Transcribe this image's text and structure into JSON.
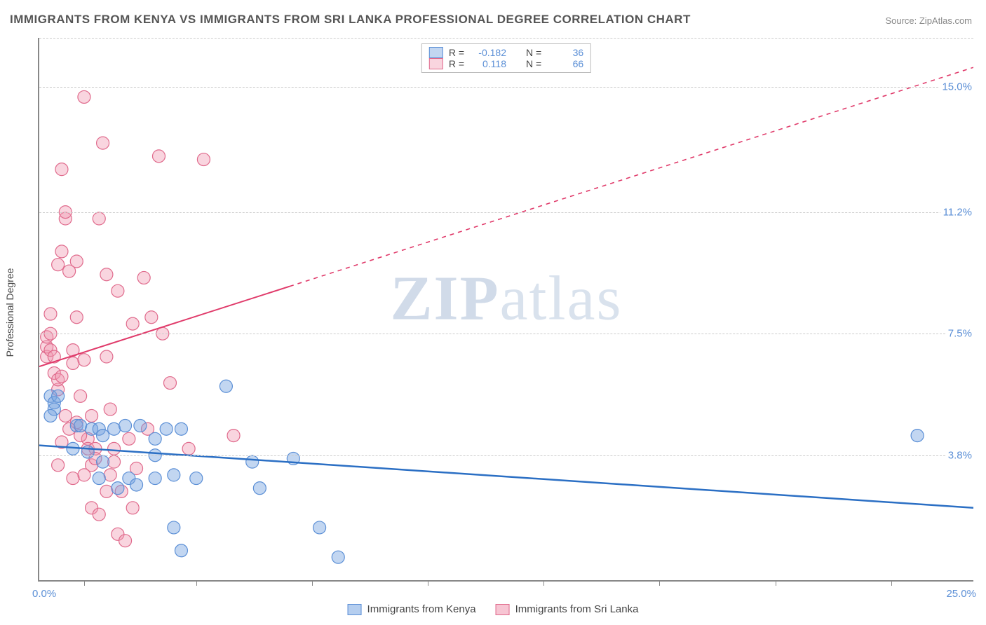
{
  "title": "IMMIGRANTS FROM KENYA VS IMMIGRANTS FROM SRI LANKA PROFESSIONAL DEGREE CORRELATION CHART",
  "source": "Source: ZipAtlas.com",
  "y_axis_title": "Professional Degree",
  "watermark": {
    "strong": "ZIP",
    "light": "atlas"
  },
  "chart": {
    "type": "scatter",
    "xlim": [
      0.0,
      25.0
    ],
    "ylim": [
      0.0,
      16.5
    ],
    "x_min_label": "0.0%",
    "x_max_label": "25.0%",
    "y_gridlines": [
      3.8,
      7.5,
      11.2,
      15.0
    ],
    "y_tick_labels": [
      "3.8%",
      "7.5%",
      "11.2%",
      "15.0%"
    ],
    "x_ticks": [
      1.2,
      4.2,
      7.3,
      10.4,
      13.5,
      16.6,
      19.7,
      22.8
    ],
    "background_color": "#ffffff",
    "grid_color": "#cccccc",
    "series": [
      {
        "name": "Immigrants from Kenya",
        "color_fill": "rgba(120,165,225,0.45)",
        "color_stroke": "#5b8fd6",
        "r_stat": "-0.182",
        "n_stat": "36",
        "marker_r": 9,
        "trend": {
          "x1": 0,
          "y1": 4.1,
          "x2": 25,
          "y2": 2.2,
          "solid_until_x": 25,
          "color": "#2b6fc4",
          "width": 2.5
        },
        "points": [
          [
            0.3,
            5.6
          ],
          [
            0.4,
            5.4
          ],
          [
            0.4,
            5.2
          ],
          [
            0.3,
            5.0
          ],
          [
            0.5,
            5.6
          ],
          [
            1.0,
            4.7
          ],
          [
            1.1,
            4.7
          ],
          [
            1.4,
            4.6
          ],
          [
            1.6,
            4.6
          ],
          [
            1.7,
            4.4
          ],
          [
            0.9,
            4.0
          ],
          [
            1.3,
            3.9
          ],
          [
            1.7,
            3.6
          ],
          [
            2.0,
            4.6
          ],
          [
            2.3,
            4.7
          ],
          [
            2.7,
            4.7
          ],
          [
            3.1,
            4.3
          ],
          [
            3.4,
            4.6
          ],
          [
            3.8,
            4.6
          ],
          [
            3.1,
            3.8
          ],
          [
            1.6,
            3.1
          ],
          [
            2.1,
            2.8
          ],
          [
            2.4,
            3.1
          ],
          [
            2.6,
            2.9
          ],
          [
            3.1,
            3.1
          ],
          [
            3.6,
            3.2
          ],
          [
            4.2,
            3.1
          ],
          [
            3.6,
            1.6
          ],
          [
            5.0,
            5.9
          ],
          [
            5.7,
            3.6
          ],
          [
            5.9,
            2.8
          ],
          [
            6.8,
            3.7
          ],
          [
            7.5,
            1.6
          ],
          [
            8.0,
            0.7
          ],
          [
            3.8,
            0.9
          ],
          [
            23.5,
            4.4
          ]
        ]
      },
      {
        "name": "Immigrants from Sri Lanka",
        "color_fill": "rgba(240,150,175,0.40)",
        "color_stroke": "#e06a8c",
        "r_stat": "0.118",
        "n_stat": "66",
        "marker_r": 9,
        "trend": {
          "x1": 0,
          "y1": 6.5,
          "x2": 25,
          "y2": 15.6,
          "solid_until_x": 6.7,
          "color": "#e03a6a",
          "width": 2
        },
        "points": [
          [
            0.2,
            6.8
          ],
          [
            0.2,
            7.1
          ],
          [
            0.2,
            7.4
          ],
          [
            0.3,
            7.0
          ],
          [
            0.3,
            7.5
          ],
          [
            0.3,
            8.1
          ],
          [
            0.4,
            6.3
          ],
          [
            0.4,
            6.8
          ],
          [
            0.5,
            5.8
          ],
          [
            0.5,
            6.1
          ],
          [
            0.5,
            9.6
          ],
          [
            0.6,
            10.0
          ],
          [
            0.6,
            6.2
          ],
          [
            0.7,
            11.0
          ],
          [
            0.7,
            11.2
          ],
          [
            0.8,
            9.4
          ],
          [
            0.9,
            6.6
          ],
          [
            0.9,
            7.0
          ],
          [
            1.0,
            8.0
          ],
          [
            1.0,
            9.7
          ],
          [
            1.1,
            5.6
          ],
          [
            1.2,
            14.7
          ],
          [
            1.2,
            6.7
          ],
          [
            1.3,
            4.3
          ],
          [
            1.3,
            4.0
          ],
          [
            1.4,
            3.5
          ],
          [
            1.4,
            5.0
          ],
          [
            1.5,
            4.0
          ],
          [
            1.5,
            3.7
          ],
          [
            1.6,
            11.0
          ],
          [
            1.7,
            13.3
          ],
          [
            1.8,
            6.8
          ],
          [
            1.8,
            9.3
          ],
          [
            1.9,
            5.2
          ],
          [
            2.0,
            4.0
          ],
          [
            2.0,
            3.6
          ],
          [
            2.1,
            8.8
          ],
          [
            2.1,
            1.4
          ],
          [
            2.2,
            2.7
          ],
          [
            2.3,
            1.2
          ],
          [
            2.4,
            4.3
          ],
          [
            2.5,
            7.8
          ],
          [
            2.6,
            3.4
          ],
          [
            2.8,
            9.2
          ],
          [
            2.9,
            4.6
          ],
          [
            3.0,
            8.0
          ],
          [
            3.2,
            12.9
          ],
          [
            3.3,
            7.5
          ],
          [
            3.5,
            6.0
          ],
          [
            4.0,
            4.0
          ],
          [
            4.4,
            12.8
          ],
          [
            5.2,
            4.4
          ],
          [
            0.6,
            12.5
          ],
          [
            1.0,
            4.8
          ],
          [
            1.1,
            4.4
          ],
          [
            1.2,
            3.2
          ],
          [
            1.4,
            2.2
          ],
          [
            1.6,
            2.0
          ],
          [
            1.8,
            2.7
          ],
          [
            1.9,
            3.2
          ],
          [
            0.9,
            3.1
          ],
          [
            0.8,
            4.6
          ],
          [
            0.7,
            5.0
          ],
          [
            0.6,
            4.2
          ],
          [
            0.5,
            3.5
          ],
          [
            2.5,
            2.2
          ]
        ]
      }
    ]
  },
  "legend_bottom": [
    {
      "label": "Immigrants from Kenya",
      "fill": "rgba(120,165,225,0.55)",
      "stroke": "#5b8fd6"
    },
    {
      "label": "Immigrants from Sri Lanka",
      "fill": "rgba(240,150,175,0.55)",
      "stroke": "#e06a8c"
    }
  ]
}
